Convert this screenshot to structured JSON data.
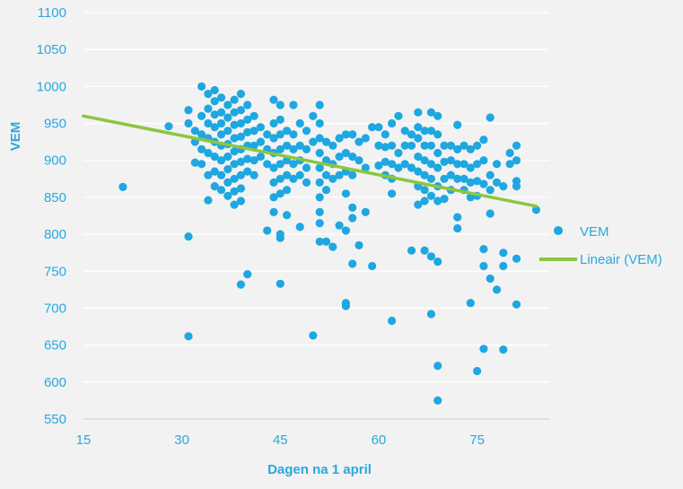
{
  "chart_data": {
    "type": "scatter",
    "xlabel": "Dagen na 1 april",
    "ylabel": "VEM",
    "xlim": [
      15,
      86
    ],
    "ylim": [
      550,
      1100
    ],
    "x_ticks": [
      15,
      30,
      45,
      60,
      75
    ],
    "y_ticks": [
      550,
      600,
      650,
      700,
      750,
      800,
      850,
      900,
      950,
      1000,
      1050,
      1100
    ],
    "grid": "horizontal",
    "legend_position": "right",
    "colors": {
      "points": "#1ea7e0",
      "trend": "#8cc63f",
      "axis_text": "#29a8e0",
      "gridline": "#ffffff",
      "background": "#f2f2f2"
    },
    "series": [
      {
        "name": "VEM",
        "type": "scatter",
        "points": [
          [
            21,
            864
          ],
          [
            28,
            946
          ],
          [
            31,
            662
          ],
          [
            31,
            797
          ],
          [
            31,
            968
          ],
          [
            31,
            950
          ],
          [
            32,
            925
          ],
          [
            32,
            897
          ],
          [
            32,
            940
          ],
          [
            33,
            1000
          ],
          [
            33,
            960
          ],
          [
            33,
            935
          ],
          [
            33,
            915
          ],
          [
            33,
            895
          ],
          [
            34,
            990
          ],
          [
            34,
            970
          ],
          [
            34,
            950
          ],
          [
            34,
            930
          ],
          [
            34,
            910
          ],
          [
            34,
            880
          ],
          [
            34,
            846
          ],
          [
            35,
            995
          ],
          [
            35,
            980
          ],
          [
            35,
            962
          ],
          [
            35,
            945
          ],
          [
            35,
            925
          ],
          [
            35,
            905
          ],
          [
            35,
            885
          ],
          [
            35,
            865
          ],
          [
            36,
            985
          ],
          [
            36,
            965
          ],
          [
            36,
            950
          ],
          [
            36,
            935
          ],
          [
            36,
            920
          ],
          [
            36,
            900
          ],
          [
            36,
            880
          ],
          [
            36,
            860
          ],
          [
            37,
            975
          ],
          [
            37,
            958
          ],
          [
            37,
            940
          ],
          [
            37,
            922
          ],
          [
            37,
            905
          ],
          [
            37,
            888
          ],
          [
            37,
            870
          ],
          [
            37,
            852
          ],
          [
            38,
            982
          ],
          [
            38,
            965
          ],
          [
            38,
            948
          ],
          [
            38,
            930
          ],
          [
            38,
            912
          ],
          [
            38,
            895
          ],
          [
            38,
            875
          ],
          [
            38,
            858
          ],
          [
            38,
            840
          ],
          [
            39,
            990
          ],
          [
            39,
            968
          ],
          [
            39,
            950
          ],
          [
            39,
            932
          ],
          [
            39,
            915
          ],
          [
            39,
            898
          ],
          [
            39,
            880
          ],
          [
            39,
            862
          ],
          [
            39,
            845
          ],
          [
            39,
            732
          ],
          [
            40,
            975
          ],
          [
            40,
            955
          ],
          [
            40,
            938
          ],
          [
            40,
            920
          ],
          [
            40,
            902
          ],
          [
            40,
            885
          ],
          [
            40,
            746
          ],
          [
            41,
            960
          ],
          [
            41,
            940
          ],
          [
            41,
            920
          ],
          [
            41,
            900
          ],
          [
            41,
            880
          ],
          [
            42,
            945
          ],
          [
            42,
            925
          ],
          [
            42,
            905
          ],
          [
            43,
            935
          ],
          [
            43,
            915
          ],
          [
            43,
            895
          ],
          [
            43,
            805
          ],
          [
            44,
            982
          ],
          [
            44,
            950
          ],
          [
            44,
            930
          ],
          [
            44,
            910
          ],
          [
            44,
            890
          ],
          [
            44,
            870
          ],
          [
            44,
            850
          ],
          [
            44,
            830
          ],
          [
            45,
            975
          ],
          [
            45,
            955
          ],
          [
            45,
            935
          ],
          [
            45,
            915
          ],
          [
            45,
            895
          ],
          [
            45,
            875
          ],
          [
            45,
            855
          ],
          [
            45,
            800
          ],
          [
            45,
            795
          ],
          [
            45,
            733
          ],
          [
            46,
            940
          ],
          [
            46,
            920
          ],
          [
            46,
            900
          ],
          [
            46,
            880
          ],
          [
            46,
            860
          ],
          [
            46,
            826
          ],
          [
            47,
            975
          ],
          [
            47,
            935
          ],
          [
            47,
            915
          ],
          [
            47,
            895
          ],
          [
            47,
            875
          ],
          [
            48,
            950
          ],
          [
            48,
            920
          ],
          [
            48,
            900
          ],
          [
            48,
            880
          ],
          [
            48,
            810
          ],
          [
            49,
            940
          ],
          [
            49,
            915
          ],
          [
            49,
            890
          ],
          [
            49,
            870
          ],
          [
            50,
            960
          ],
          [
            50,
            925
          ],
          [
            50,
            663
          ],
          [
            51,
            975
          ],
          [
            51,
            950
          ],
          [
            51,
            930
          ],
          [
            51,
            910
          ],
          [
            51,
            890
          ],
          [
            51,
            870
          ],
          [
            51,
            850
          ],
          [
            51,
            830
          ],
          [
            51,
            815
          ],
          [
            51,
            790
          ],
          [
            52,
            925
          ],
          [
            52,
            900
          ],
          [
            52,
            880
          ],
          [
            52,
            860
          ],
          [
            52,
            790
          ],
          [
            53,
            920
          ],
          [
            53,
            895
          ],
          [
            53,
            875
          ],
          [
            53,
            783
          ],
          [
            54,
            930
          ],
          [
            54,
            905
          ],
          [
            54,
            880
          ],
          [
            54,
            812
          ],
          [
            55,
            935
          ],
          [
            55,
            910
          ],
          [
            55,
            885
          ],
          [
            55,
            855
          ],
          [
            55,
            805
          ],
          [
            55,
            707
          ],
          [
            55,
            703
          ],
          [
            56,
            935
          ],
          [
            56,
            905
          ],
          [
            56,
            880
          ],
          [
            56,
            836
          ],
          [
            56,
            822
          ],
          [
            56,
            760
          ],
          [
            57,
            925
          ],
          [
            57,
            900
          ],
          [
            57,
            785
          ],
          [
            58,
            930
          ],
          [
            58,
            890
          ],
          [
            58,
            830
          ],
          [
            59,
            945
          ],
          [
            59,
            757
          ],
          [
            60,
            945
          ],
          [
            60,
            920
          ],
          [
            60,
            893
          ],
          [
            61,
            935
          ],
          [
            61,
            918
          ],
          [
            61,
            898
          ],
          [
            61,
            880
          ],
          [
            62,
            950
          ],
          [
            62,
            920
          ],
          [
            62,
            895
          ],
          [
            62,
            875
          ],
          [
            62,
            855
          ],
          [
            62,
            683
          ],
          [
            63,
            960
          ],
          [
            63,
            910
          ],
          [
            63,
            890
          ],
          [
            64,
            940
          ],
          [
            64,
            920
          ],
          [
            64,
            895
          ],
          [
            65,
            935
          ],
          [
            65,
            920
          ],
          [
            65,
            890
          ],
          [
            65,
            778
          ],
          [
            66,
            965
          ],
          [
            66,
            945
          ],
          [
            66,
            930
          ],
          [
            66,
            905
          ],
          [
            66,
            885
          ],
          [
            66,
            865
          ],
          [
            66,
            840
          ],
          [
            67,
            940
          ],
          [
            67,
            920
          ],
          [
            67,
            900
          ],
          [
            67,
            880
          ],
          [
            67,
            860
          ],
          [
            67,
            845
          ],
          [
            67,
            778
          ],
          [
            68,
            965
          ],
          [
            68,
            940
          ],
          [
            68,
            920
          ],
          [
            68,
            895
          ],
          [
            68,
            875
          ],
          [
            68,
            852
          ],
          [
            68,
            770
          ],
          [
            68,
            692
          ],
          [
            69,
            960
          ],
          [
            69,
            935
          ],
          [
            69,
            910
          ],
          [
            69,
            890
          ],
          [
            69,
            865
          ],
          [
            69,
            845
          ],
          [
            69,
            763
          ],
          [
            69,
            622
          ],
          [
            69,
            575
          ],
          [
            70,
            920
          ],
          [
            70,
            898
          ],
          [
            70,
            875
          ],
          [
            70,
            848
          ],
          [
            71,
            920
          ],
          [
            71,
            900
          ],
          [
            71,
            880
          ],
          [
            71,
            860
          ],
          [
            72,
            948
          ],
          [
            72,
            915
          ],
          [
            72,
            895
          ],
          [
            72,
            875
          ],
          [
            72,
            823
          ],
          [
            72,
            808
          ],
          [
            73,
            920
          ],
          [
            73,
            895
          ],
          [
            73,
            875
          ],
          [
            73,
            860
          ],
          [
            74,
            915
          ],
          [
            74,
            890
          ],
          [
            74,
            870
          ],
          [
            74,
            850
          ],
          [
            74,
            707
          ],
          [
            75,
            920
          ],
          [
            75,
            895
          ],
          [
            75,
            872
          ],
          [
            75,
            852
          ],
          [
            75,
            615
          ],
          [
            76,
            928
          ],
          [
            76,
            900
          ],
          [
            76,
            868
          ],
          [
            76,
            780
          ],
          [
            76,
            757
          ],
          [
            76,
            645
          ],
          [
            77,
            958
          ],
          [
            77,
            880
          ],
          [
            77,
            860
          ],
          [
            77,
            828
          ],
          [
            77,
            740
          ],
          [
            78,
            895
          ],
          [
            78,
            870
          ],
          [
            78,
            725
          ],
          [
            79,
            865
          ],
          [
            79,
            775
          ],
          [
            79,
            757
          ],
          [
            79,
            644
          ],
          [
            80,
            895
          ],
          [
            80,
            910
          ],
          [
            81,
            920
          ],
          [
            81,
            900
          ],
          [
            81,
            872
          ],
          [
            81,
            865
          ],
          [
            81,
            767
          ],
          [
            81,
            705
          ],
          [
            84,
            833
          ]
        ]
      },
      {
        "name": "Lineair (VEM)",
        "type": "line",
        "points": [
          [
            15,
            960
          ],
          [
            84,
            838
          ]
        ]
      }
    ]
  }
}
